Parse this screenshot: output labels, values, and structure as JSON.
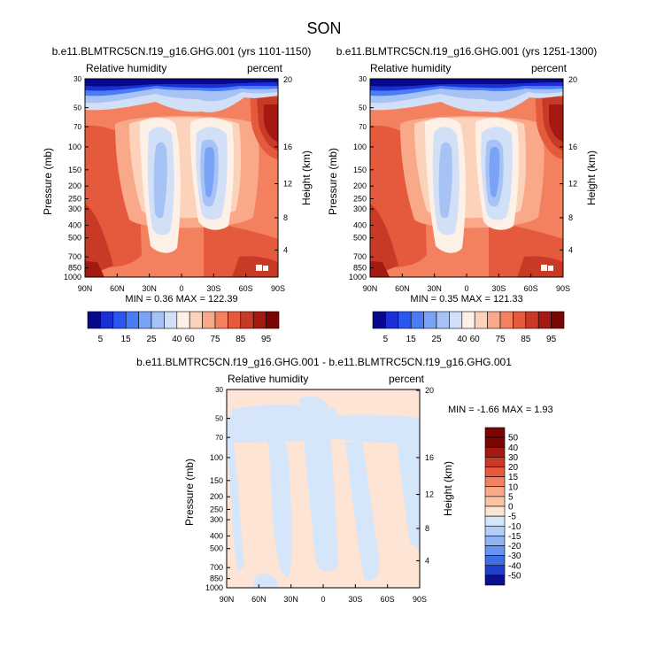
{
  "page": {
    "title": "SON",
    "colors": {
      "background": "#ffffff",
      "axis": "#000000"
    }
  },
  "common": {
    "left_title": "Relative humidity",
    "right_title": "percent",
    "ylabel_left": "Pressure (mb)",
    "ylabel_right": "Height (km)",
    "pressure_ticks": [
      "30",
      "50",
      "70",
      "100",
      "150",
      "200",
      "250",
      "300",
      "400",
      "500",
      "700",
      "850",
      "1000"
    ],
    "height_ticks": [
      "20",
      "16",
      "12",
      "8",
      "4"
    ],
    "lat_ticks": [
      "90N",
      "60N",
      "30N",
      "0",
      "30S",
      "60S",
      "90S"
    ]
  },
  "panels": [
    {
      "subtitle": "b.e11.BLMTRC5CN.f19_g16.GHG.001 (yrs 1101-1150)",
      "stats": "MIN =  0.36  MAX = 122.39"
    },
    {
      "subtitle": "b.e11.BLMTRC5CN.f19_g16.GHG.001 (yrs 1251-1300)",
      "stats": "MIN =  0.35  MAX = 121.33"
    },
    {
      "subtitle": "b.e11.BLMTRC5CN.f19_g16.GHG.001 - b.e11.BLMTRC5CN.f19_g16.GHG.001",
      "stats": "MIN = -1.66  MAX =  1.93"
    }
  ],
  "colorbar_main": {
    "labels": [
      "5",
      "15",
      "25",
      "40",
      "60",
      "75",
      "85",
      "95"
    ],
    "colors": [
      "#08088c",
      "#1a2fd6",
      "#2b57f0",
      "#4a7cf6",
      "#7aa2f7",
      "#a7c3f5",
      "#d2e0f7",
      "#fdf0e6",
      "#fcd2bb",
      "#f9a98a",
      "#f3805f",
      "#e55a3c",
      "#c93a26",
      "#a41a13",
      "#7a0604"
    ]
  },
  "colorbar_diff": {
    "labels": [
      "50",
      "40",
      "30",
      "20",
      "15",
      "10",
      "5",
      "0",
      "-5",
      "-10",
      "-15",
      "-20",
      "-30",
      "-40",
      "-50"
    ],
    "colors": [
      "#7a0604",
      "#a41a13",
      "#c93a26",
      "#e55a3c",
      "#f3805f",
      "#f9a98a",
      "#fcc2a6",
      "#fde4d4",
      "#d6e6fa",
      "#b4cff6",
      "#8fb3f3",
      "#6893ee",
      "#3f6de6",
      "#2040cc",
      "#0a1090"
    ]
  },
  "chart_data": [
    {
      "type": "heatmap",
      "title": "b.e11.BLMTRC5CN.f19_g16.GHG.001 (yrs 1101-1150)",
      "variable": "Relative humidity",
      "units": "percent",
      "xlabel": "",
      "ylabel": "Pressure (mb)",
      "ylabel_right": "Height (km)",
      "x_ticks": [
        "90N",
        "60N",
        "30N",
        "0",
        "30S",
        "60S",
        "90S"
      ],
      "y_ticks": [
        30,
        50,
        70,
        100,
        150,
        200,
        250,
        300,
        400,
        500,
        700,
        850,
        1000
      ],
      "y_scale": "log",
      "y_reversed": true,
      "min": 0.36,
      "max": 122.39,
      "contour_levels": [
        5,
        10,
        15,
        20,
        25,
        30,
        40,
        50,
        60,
        65,
        70,
        75,
        80,
        85,
        90,
        95
      ]
    },
    {
      "type": "heatmap",
      "title": "b.e11.BLMTRC5CN.f19_g16.GHG.001 (yrs 1251-1300)",
      "variable": "Relative humidity",
      "units": "percent",
      "xlabel": "",
      "ylabel": "Pressure (mb)",
      "ylabel_right": "Height (km)",
      "x_ticks": [
        "90N",
        "60N",
        "30N",
        "0",
        "30S",
        "60S",
        "90S"
      ],
      "y_ticks": [
        30,
        50,
        70,
        100,
        150,
        200,
        250,
        300,
        400,
        500,
        700,
        850,
        1000
      ],
      "y_scale": "log",
      "y_reversed": true,
      "min": 0.35,
      "max": 121.33,
      "contour_levels": [
        5,
        10,
        15,
        20,
        25,
        30,
        40,
        50,
        60,
        65,
        70,
        75,
        80,
        85,
        90,
        95
      ]
    },
    {
      "type": "heatmap",
      "title": "b.e11.BLMTRC5CN.f19_g16.GHG.001 - b.e11.BLMTRC5CN.f19_g16.GHG.001",
      "variable": "Relative humidity",
      "units": "percent",
      "xlabel": "",
      "ylabel": "Pressure (mb)",
      "ylabel_right": "Height (km)",
      "x_ticks": [
        "90N",
        "60N",
        "30N",
        "0",
        "30S",
        "60S",
        "90S"
      ],
      "y_ticks": [
        30,
        50,
        70,
        100,
        150,
        200,
        250,
        300,
        400,
        500,
        700,
        850,
        1000
      ],
      "y_scale": "log",
      "y_reversed": true,
      "min": -1.66,
      "max": 1.93,
      "contour_levels": [
        -50,
        -40,
        -30,
        -20,
        -15,
        -10,
        -5,
        0,
        5,
        10,
        15,
        20,
        30,
        40,
        50
      ]
    }
  ]
}
